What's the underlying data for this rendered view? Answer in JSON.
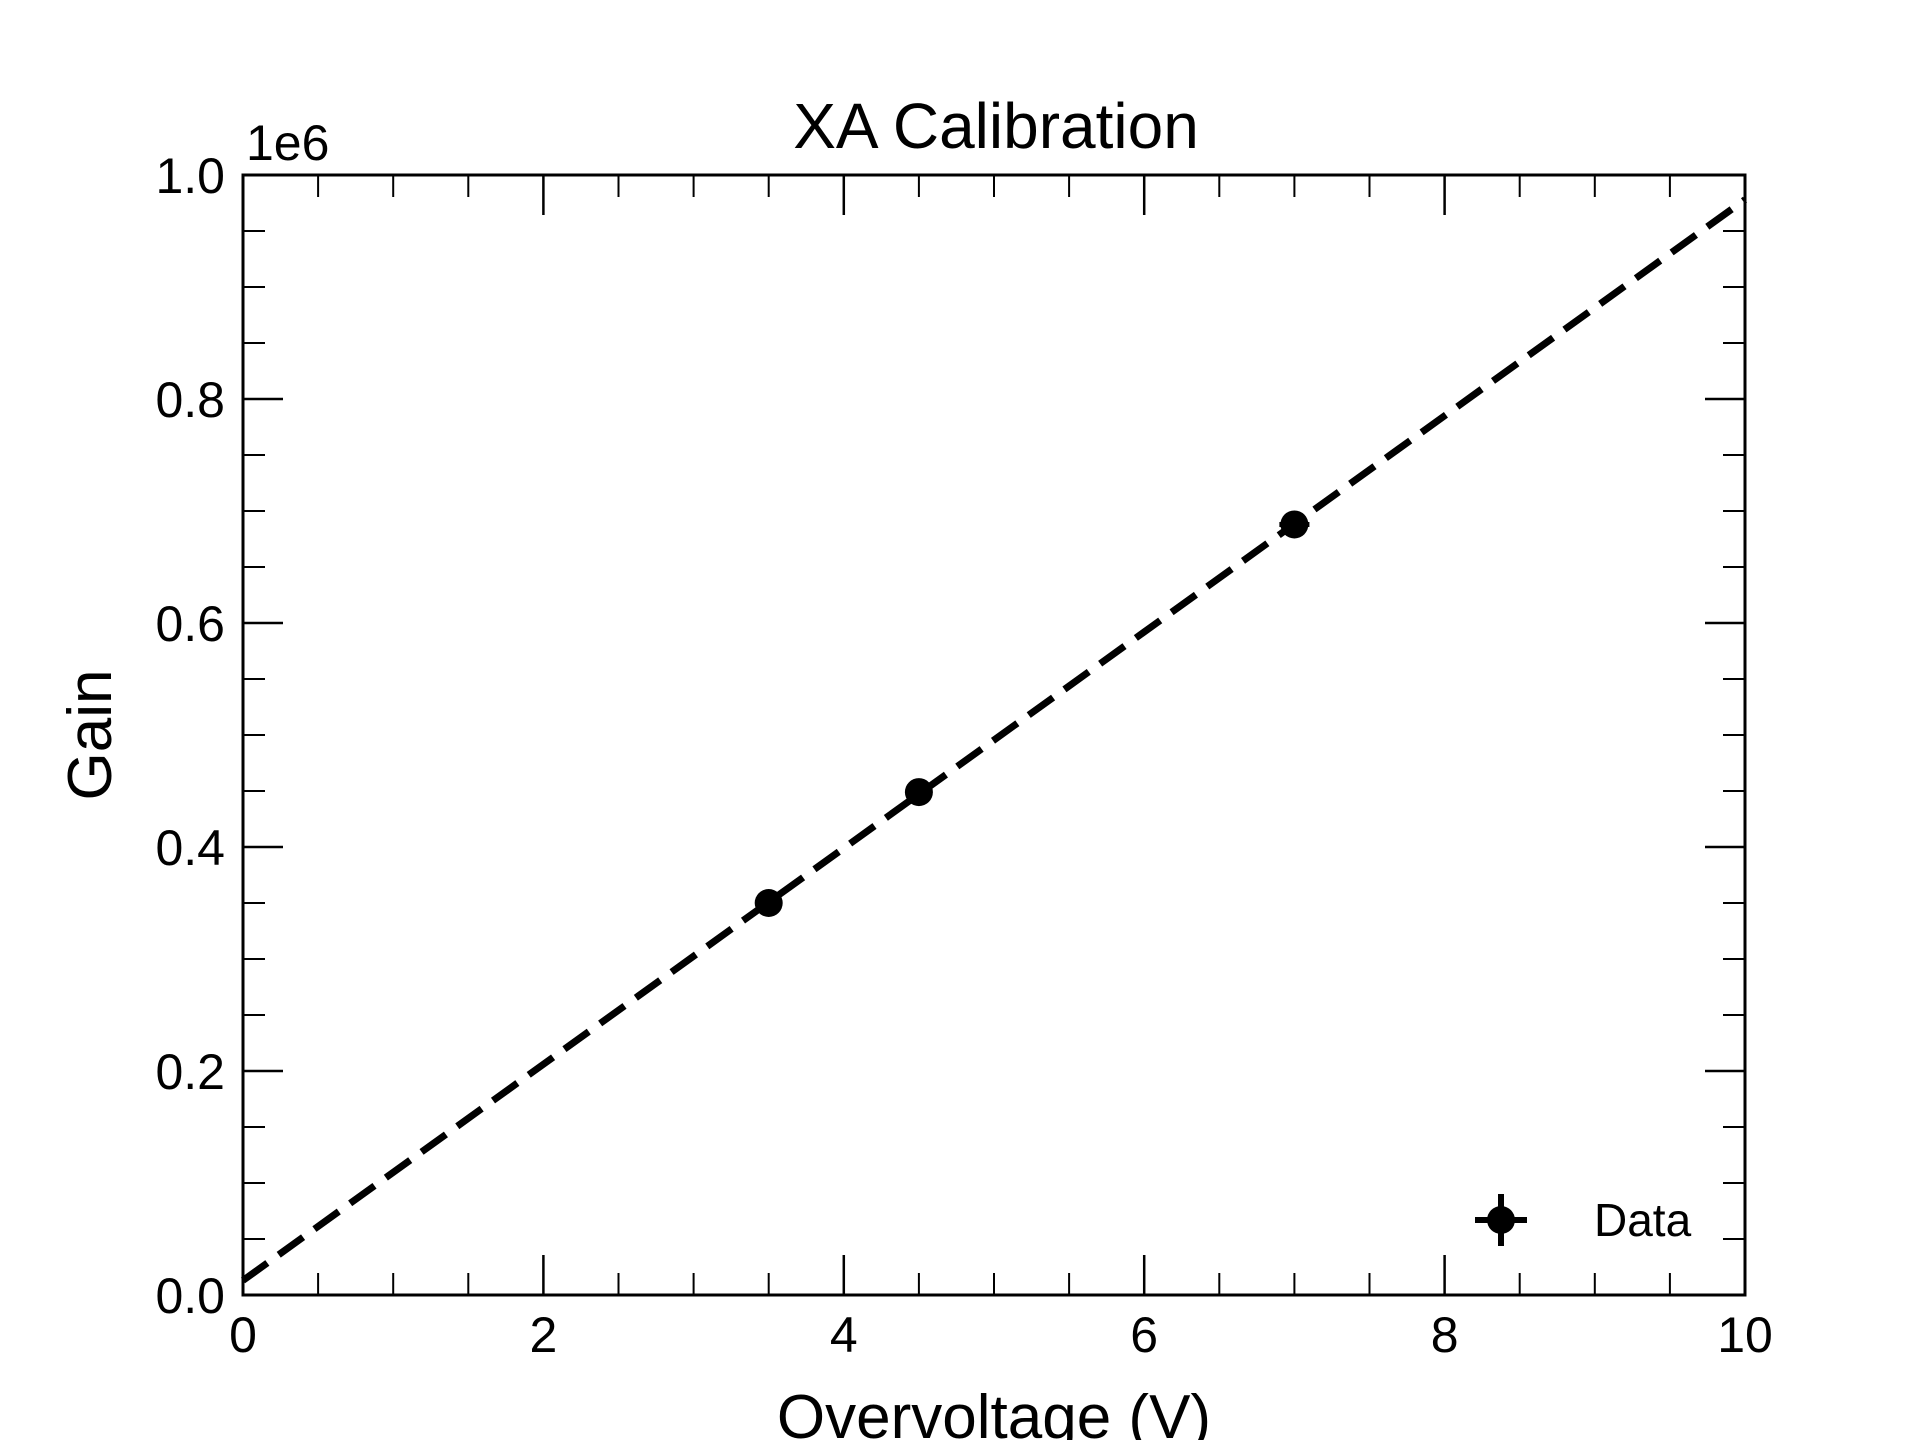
{
  "chart_data": {
    "type": "scatter",
    "title": "XA Calibration",
    "xlabel": "Overvoltage (V)",
    "ylabel": "Gain",
    "y_offset_label": "1e6",
    "xlim": [
      0,
      10
    ],
    "ylim": [
      0,
      1.0
    ],
    "x_ticks": [
      0,
      2,
      4,
      6,
      8,
      10
    ],
    "x_tick_labels": [
      "0",
      "2",
      "4",
      "6",
      "8",
      "10"
    ],
    "y_ticks": [
      0.0,
      0.2,
      0.4,
      0.6,
      0.8,
      1.0
    ],
    "y_tick_labels": [
      "0.0",
      "0.2",
      "0.4",
      "0.6",
      "0.8",
      "1.0"
    ],
    "x_minor_step": 0.5,
    "y_minor_step": 0.05,
    "grid": false,
    "legend_position": "bottom-right",
    "series": [
      {
        "name": "Data",
        "style": "points with error bars",
        "color": "#000000",
        "x": [
          3.5,
          4.5,
          7.0
        ],
        "y": [
          0.35,
          0.449,
          0.688
        ],
        "xerr": [
          0.02,
          0.02,
          0.1
        ],
        "yerr": [
          0.004,
          0.004,
          0.004
        ]
      },
      {
        "style": "dashed line",
        "color": "#000000",
        "x": [
          0,
          10
        ],
        "y": [
          0.013,
          0.978
        ]
      }
    ]
  }
}
